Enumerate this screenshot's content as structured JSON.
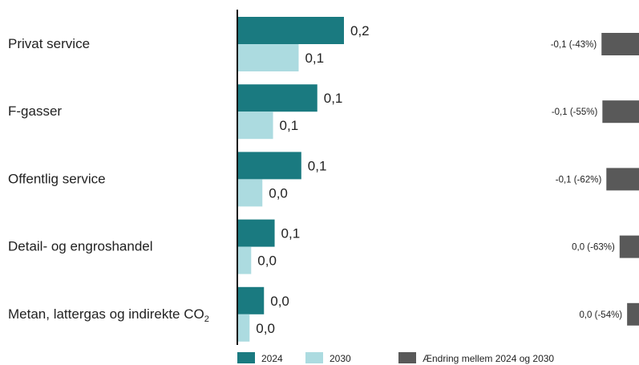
{
  "chart_data": {
    "type": "bar",
    "orientation": "horizontal",
    "categories": [
      {
        "label": "Privat service",
        "subscript": ""
      },
      {
        "label": "F-gasser",
        "subscript": ""
      },
      {
        "label": "Offentlig service",
        "subscript": ""
      },
      {
        "label": "Detail- og engroshandel",
        "subscript": ""
      },
      {
        "label": "Metan, lattergas og indirekte CO",
        "subscript": "2"
      }
    ],
    "series": [
      {
        "name": "2024",
        "color": "#1a7a80",
        "values": [
          0.2,
          0.15,
          0.12,
          0.07,
          0.05
        ],
        "labels": [
          "0,2",
          "0,1",
          "0,1",
          "0,1",
          "0,0"
        ]
      },
      {
        "name": "2030",
        "color": "#acdbe0",
        "values": [
          0.115,
          0.067,
          0.047,
          0.026,
          0.023
        ],
        "labels": [
          "0,1",
          "0,1",
          "0,0",
          "0,0",
          "0,0"
        ]
      }
    ],
    "change_series": {
      "name": "Ændring mellem 2024 og 2030",
      "color": "#595959",
      "values": [
        -0.085,
        -0.083,
        -0.074,
        -0.044,
        -0.027
      ],
      "labels": [
        "-0,1 (-43%)",
        "-0,1 (-55%)",
        "-0,1 (-62%)",
        "0,0 (-63%)",
        "0,0 (-54%)"
      ]
    },
    "xlim": [
      0,
      0.2
    ],
    "legend_position": "bottom",
    "grid": false
  }
}
